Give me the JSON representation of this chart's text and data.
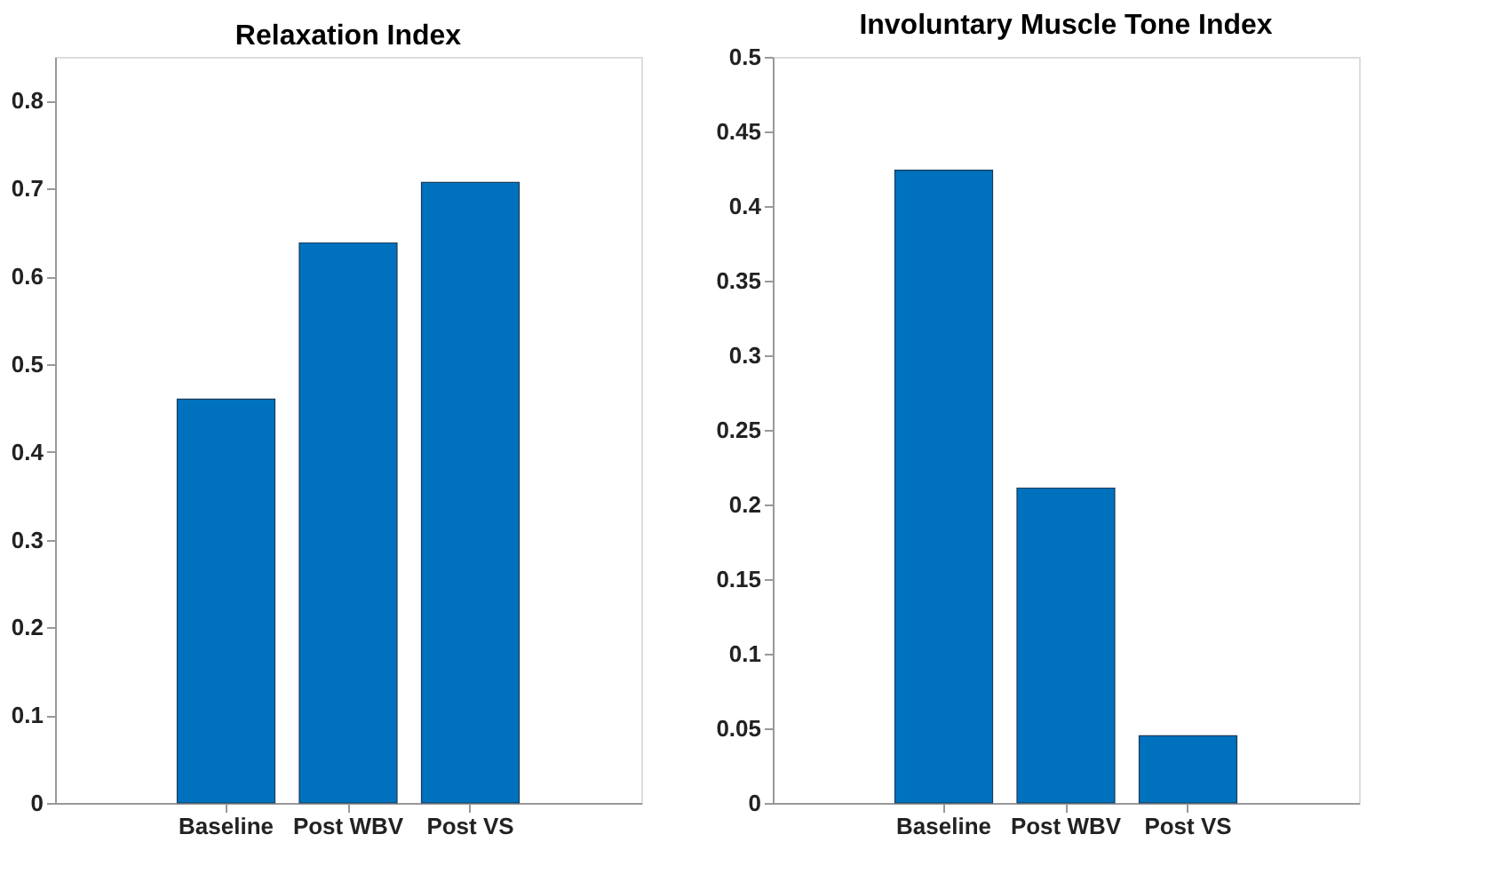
{
  "chart_data": [
    {
      "type": "bar",
      "title": "Relaxation Index",
      "categories": [
        "Baseline",
        "Post WBV",
        "Post VS"
      ],
      "values": [
        0.46,
        0.638,
        0.707
      ],
      "color": "#0072bd",
      "ylim": [
        0,
        0.85
      ],
      "yticks": [
        0,
        0.1,
        0.2,
        0.3,
        0.4,
        0.5,
        0.6,
        0.7,
        0.8
      ],
      "grid": false
    },
    {
      "type": "bar",
      "title": "Involuntary Muscle Tone Index",
      "categories": [
        "Baseline",
        "Post WBV",
        "Post VS"
      ],
      "values": [
        0.424,
        0.211,
        0.045
      ],
      "color": "#0072bd",
      "ylim": [
        0,
        0.5
      ],
      "yticks": [
        0,
        0.05,
        0.1,
        0.15,
        0.2,
        0.25,
        0.3,
        0.35,
        0.4,
        0.45,
        0.5
      ],
      "grid": false
    }
  ]
}
